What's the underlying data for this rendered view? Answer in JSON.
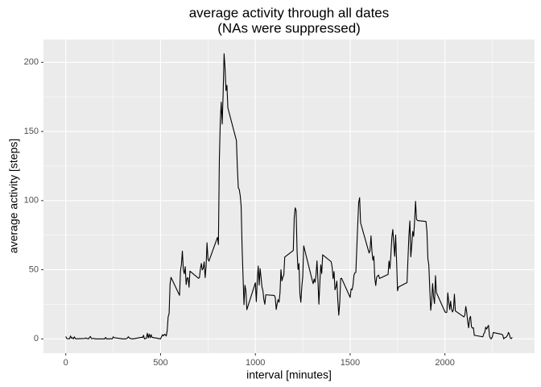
{
  "chart_data": {
    "type": "line",
    "title": "average activity through all dates",
    "subtitle": "(NAs were suppressed)",
    "x_label": "interval [minutes]",
    "y_label": "average activity [steps]",
    "xlim": [
      -117.75,
      2472.75
    ],
    "xticks": [
      0,
      500,
      1000,
      1500,
      2000
    ],
    "ylim": [
      -10.3,
      216.5
    ],
    "yticks": [
      0,
      50,
      100,
      150,
      200
    ],
    "grid": true,
    "minor_grid": true,
    "series": [
      {
        "color": "#000000",
        "x": [
          0,
          5,
          10,
          15,
          20,
          25,
          30,
          35,
          40,
          45,
          50,
          55,
          100,
          105,
          110,
          115,
          120,
          125,
          130,
          135,
          140,
          145,
          150,
          155,
          200,
          205,
          210,
          215,
          220,
          225,
          230,
          235,
          240,
          245,
          250,
          255,
          300,
          305,
          310,
          315,
          320,
          325,
          330,
          335,
          340,
          345,
          350,
          355,
          400,
          405,
          410,
          415,
          420,
          425,
          430,
          435,
          440,
          445,
          450,
          455,
          500,
          505,
          510,
          515,
          520,
          525,
          530,
          535,
          540,
          545,
          550,
          555,
          600,
          605,
          610,
          615,
          620,
          625,
          630,
          635,
          640,
          645,
          650,
          655,
          700,
          705,
          710,
          715,
          720,
          725,
          730,
          735,
          740,
          745,
          750,
          755,
          800,
          805,
          810,
          815,
          820,
          825,
          830,
          835,
          840,
          845,
          850,
          855,
          900,
          905,
          910,
          915,
          920,
          925,
          930,
          935,
          940,
          945,
          950,
          955,
          1000,
          1005,
          1010,
          1015,
          1020,
          1025,
          1030,
          1035,
          1040,
          1045,
          1050,
          1055,
          1100,
          1105,
          1110,
          1115,
          1120,
          1125,
          1130,
          1135,
          1140,
          1145,
          1150,
          1155,
          1200,
          1205,
          1210,
          1215,
          1220,
          1225,
          1230,
          1235,
          1240,
          1245,
          1250,
          1255,
          1300,
          1305,
          1310,
          1315,
          1320,
          1325,
          1330,
          1335,
          1340,
          1345,
          1350,
          1355,
          1400,
          1405,
          1410,
          1415,
          1420,
          1425,
          1430,
          1435,
          1440,
          1445,
          1450,
          1455,
          1500,
          1505,
          1510,
          1515,
          1520,
          1525,
          1530,
          1535,
          1540,
          1545,
          1550,
          1555,
          1600,
          1605,
          1610,
          1615,
          1620,
          1625,
          1630,
          1635,
          1640,
          1645,
          1650,
          1655,
          1700,
          1705,
          1710,
          1715,
          1720,
          1725,
          1730,
          1735,
          1740,
          1745,
          1750,
          1755,
          1800,
          1805,
          1810,
          1815,
          1820,
          1825,
          1830,
          1835,
          1840,
          1845,
          1850,
          1855,
          1900,
          1905,
          1910,
          1915,
          1920,
          1925,
          1930,
          1935,
          1940,
          1945,
          1950,
          1955,
          2000,
          2005,
          2010,
          2015,
          2020,
          2025,
          2030,
          2035,
          2040,
          2045,
          2050,
          2055,
          2100,
          2105,
          2110,
          2115,
          2120,
          2125,
          2130,
          2135,
          2140,
          2145,
          2150,
          2155,
          2200,
          2205,
          2210,
          2215,
          2220,
          2225,
          2230,
          2235,
          2240,
          2245,
          2250,
          2255,
          2300,
          2305,
          2310,
          2315,
          2320,
          2325,
          2330,
          2335,
          2340,
          2345,
          2350,
          2355
        ],
        "values": [
          1.7,
          0.3,
          0.1,
          0.2,
          0.1,
          2.1,
          0.5,
          0.9,
          0,
          1.5,
          0.3,
          0.1,
          0.3,
          0.7,
          0.2,
          0.3,
          0,
          1.1,
          1.8,
          0.2,
          0.2,
          0.4,
          0.3,
          0,
          0,
          0,
          1.1,
          0,
          0,
          0.1,
          0,
          0.2,
          0,
          0,
          1.5,
          0.9,
          0,
          0,
          0,
          0,
          0.2,
          0.6,
          1.6,
          0.6,
          0.5,
          0.1,
          0,
          0,
          1.2,
          0.9,
          2.6,
          0,
          0.3,
          0.4,
          4.1,
          0.7,
          3.5,
          0.8,
          3.1,
          1.1,
          0,
          1.6,
          3,
          2.2,
          3.3,
          3,
          2.1,
          6.1,
          16,
          18.3,
          39.5,
          44.5,
          31.5,
          49.3,
          53.8,
          63.5,
          50,
          47.1,
          52.2,
          39.3,
          44,
          44.2,
          37.4,
          49,
          43.8,
          44.4,
          50.5,
          54.5,
          49.9,
          51,
          55.7,
          44.3,
          52.3,
          69.5,
          57.8,
          56.2,
          73.4,
          68.2,
          129.4,
          157.5,
          171.2,
          155.4,
          177.3,
          206.2,
          195.9,
          179.6,
          183.4,
          167,
          143.5,
          124,
          109.1,
          108.1,
          103.7,
          96,
          66.2,
          45.2,
          24.8,
          38.8,
          35,
          21.1,
          40.6,
          26.9,
          42.4,
          52.7,
          38.9,
          50.8,
          44.3,
          37.4,
          34.7,
          28.3,
          25.1,
          31.9,
          31.4,
          29.7,
          21.3,
          25.5,
          28.4,
          26.5,
          33.4,
          50,
          42,
          44.6,
          46,
          59.2,
          63.9,
          87.7,
          94.8,
          92.8,
          63.4,
          50.2,
          54.5,
          32.4,
          26.5,
          37.7,
          45.1,
          67.3,
          42.3,
          39.9,
          43.3,
          40.9,
          46.2,
          56.4,
          42.8,
          25.1,
          39.9,
          53.5,
          47.3,
          60.8,
          55.8,
          51.9,
          43.6,
          48.7,
          35.5,
          37.5,
          41.8,
          27.5,
          17.1,
          26.1,
          43.6,
          43.8,
          30,
          36.1,
          35.5,
          38.8,
          46,
          47.8,
          48.1,
          65.3,
          82.9,
          98.7,
          102.1,
          84,
          62.1,
          64.1,
          74.5,
          63.2,
          56.9,
          59.8,
          43.9,
          38.6,
          44.7,
          45.5,
          46.2,
          43.7,
          46.6,
          56.3,
          50.7,
          61.2,
          73.4,
          79.1,
          68.9,
          59.7,
          75.1,
          56.5,
          34.8,
          37.5,
          40.7,
          58,
          74.7,
          85.3,
          59.3,
          67.8,
          77.7,
          74.2,
          85.3,
          99.5,
          86.6,
          85.6,
          84.9,
          77.8,
          58,
          53.4,
          36.3,
          20.7,
          27.4,
          40,
          30.2,
          25.5,
          45.7,
          33.5,
          19.6,
          19,
          19.3,
          33.3,
          26.8,
          21.2,
          27.3,
          21.3,
          19.5,
          21.3,
          32.3,
          20.2,
          15.9,
          17.2,
          23.5,
          19.2,
          12.5,
          8,
          14.7,
          16.3,
          8.7,
          7.8,
          8.1,
          2.6,
          1.5,
          3.7,
          4.8,
          8.5,
          7.1,
          8.7,
          9.8,
          2.2,
          0.3,
          0.1,
          1.6,
          4.6,
          3.3,
          2.8,
          0,
          0.8,
          1,
          1.6,
          2.6,
          4.7,
          3.3,
          0.6,
          0.2,
          1.1
        ]
      }
    ]
  }
}
